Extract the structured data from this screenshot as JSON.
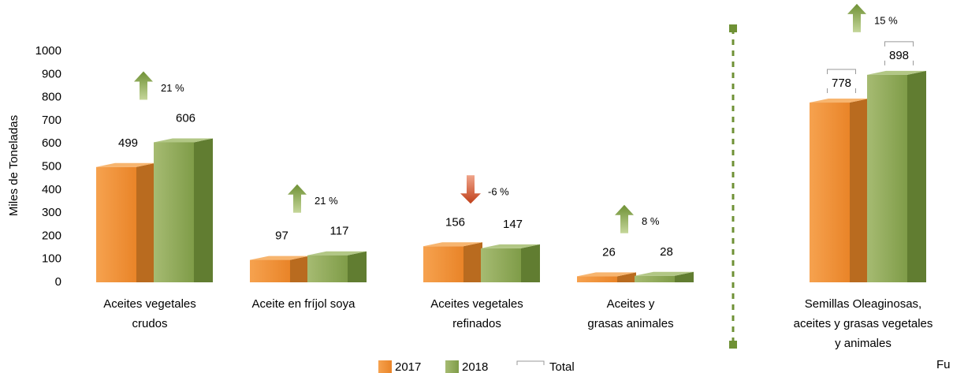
{
  "chart_data": {
    "type": "bar3d",
    "y_label": "Miles de Toneladas",
    "categories": [
      [
        "Aceites vegetales",
        "crudos"
      ],
      [
        "Aceite en fríjol soya"
      ],
      [
        "Aceites vegetales",
        "refinados"
      ],
      [
        "Aceites y",
        "grasas animales"
      ],
      [
        "Semillas Oleaginosas,",
        "aceites y grasas vegetales",
        "y animales"
      ]
    ],
    "series": [
      {
        "name": "2017",
        "color": "#ef8a2c",
        "values": [
          499,
          97,
          156,
          26,
          778
        ]
      },
      {
        "name": "2018",
        "color": "#8ba654",
        "values": [
          606,
          117,
          147,
          28,
          898
        ]
      }
    ],
    "changes": [
      21,
      21,
      -6,
      8,
      15
    ],
    "change_labels": [
      "21 %",
      "21 %",
      "-6 %",
      "8 %",
      "15 %"
    ],
    "total_legend": "Total",
    "source": "Fu",
    "ylim": [
      0,
      1000
    ],
    "yticks": [
      0,
      100,
      200,
      300,
      400,
      500,
      600,
      700,
      800,
      900,
      1000
    ]
  }
}
